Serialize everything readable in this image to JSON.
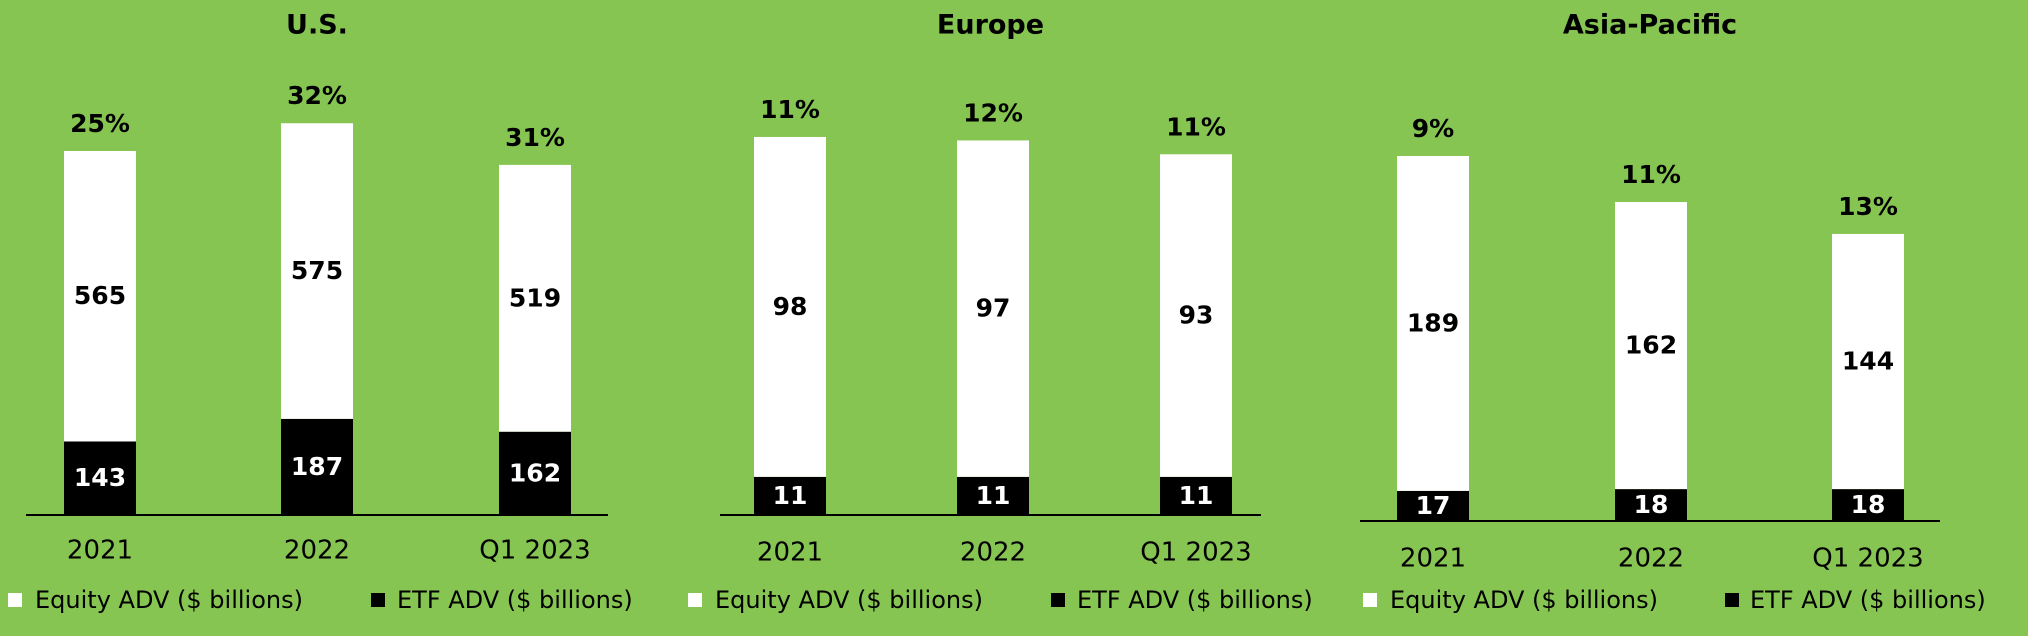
{
  "chart_data": [
    {
      "type": "bar",
      "title": "U.S.",
      "categories": [
        "2021",
        "2022",
        "Q1 2023"
      ],
      "series": [
        {
          "name": "ETF ADV ($ billions)",
          "color": "#000000",
          "values": [
            143,
            187,
            162
          ]
        },
        {
          "name": "Equity ADV ($ billions)",
          "color": "#ffffff",
          "values": [
            565,
            575,
            519
          ]
        }
      ],
      "annotations": [
        "25%",
        "32%",
        "31%"
      ],
      "ylim": [
        0,
        850
      ],
      "stacked": true
    },
    {
      "type": "bar",
      "title": "Europe",
      "categories": [
        "2021",
        "2022",
        "Q1 2023"
      ],
      "series": [
        {
          "name": "ETF ADV ($ billions)",
          "color": "#000000",
          "values": [
            11,
            11,
            11
          ]
        },
        {
          "name": "Equity ADV ($ billions)",
          "color": "#ffffff",
          "values": [
            98,
            97,
            93
          ]
        }
      ],
      "annotations": [
        "11%",
        "12%",
        "11%"
      ],
      "ylim": [
        0,
        126
      ],
      "stacked": true
    },
    {
      "type": "bar",
      "title": "Asia-Pacific",
      "categories": [
        "2021",
        "2022",
        "Q1 2023"
      ],
      "series": [
        {
          "name": "ETF ADV ($ billions)",
          "color": "#000000",
          "values": [
            17,
            18,
            18
          ]
        },
        {
          "name": "Equity ADV ($ billions)",
          "color": "#ffffff",
          "values": [
            189,
            162,
            144
          ]
        }
      ],
      "annotations": [
        "9%",
        "11%",
        "13%"
      ],
      "ylim": [
        0,
        250
      ],
      "stacked": true
    }
  ]
}
